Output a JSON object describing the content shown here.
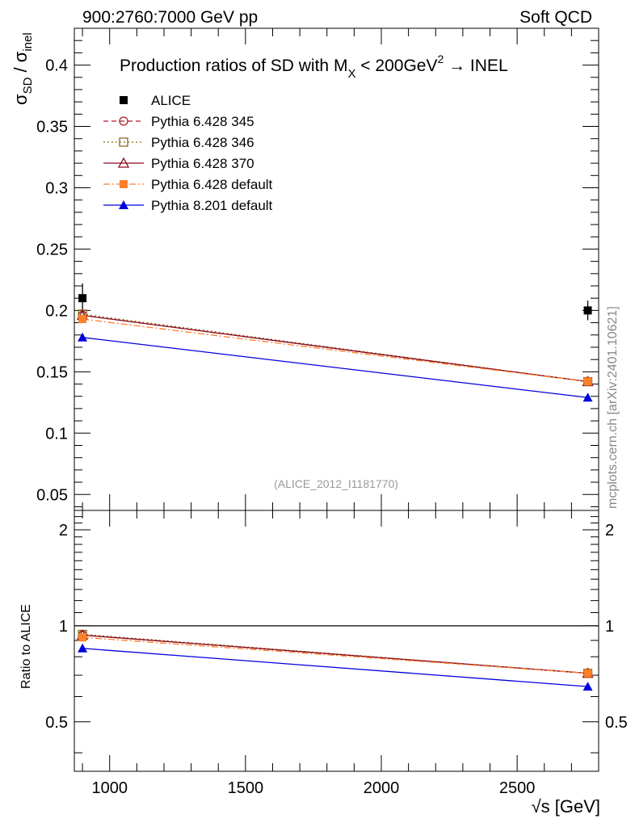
{
  "header": {
    "left": "900:2760:7000 GeV pp",
    "right": "Soft QCD"
  },
  "watermark": "mcplots.cern.ch [arXiv:2401.10621]",
  "analysis_id": "(ALICE_2012_I1181770)",
  "title": {
    "prefix": "Production ratios of SD with M",
    "sub": "X",
    "mid": " < 200GeV",
    "sup": "2",
    "suffix": " → INEL"
  },
  "ylabel": {
    "main": "σ",
    "sub1": "SD",
    "slash": " / σ",
    "sub2": "inel"
  },
  "ratio_ylabel": "Ratio to ALICE",
  "xlabel": "√s [GeV]",
  "colors": {
    "alice": "#000000",
    "p345": "#b2182b",
    "p346": "#8c6d1f",
    "p370": "#8b0a1a",
    "pdef6": "#ff7f2a",
    "p8": "#0000dd"
  },
  "chart_data": [
    {
      "type": "scatter",
      "panel": "main",
      "xlim": [
        870,
        2800
      ],
      "ylim": [
        0.037,
        0.43
      ],
      "x_ticks": [
        1000,
        1500,
        2000,
        2500
      ],
      "x_tick_labels": [
        "1000",
        "1500",
        "2000",
        "2500"
      ],
      "y_ticks": [
        0.05,
        0.1,
        0.15,
        0.2,
        0.25,
        0.3,
        0.35,
        0.4
      ],
      "y_tick_labels": [
        "0.05",
        "0.1",
        "0.15",
        "0.2",
        "0.25",
        "0.3",
        "0.35",
        "0.4"
      ],
      "series": [
        {
          "key": "alice",
          "name": "ALICE",
          "x": [
            900,
            2760
          ],
          "y": [
            0.21,
            0.2
          ],
          "yerr": [
            0.012,
            0.008
          ],
          "marker": "square-filled",
          "line": "none"
        },
        {
          "key": "p345",
          "name": "Pythia 6.428 345",
          "x": [
            900,
            2760
          ],
          "y": [
            0.196,
            0.142
          ],
          "marker": "circle-open",
          "line": "dashed"
        },
        {
          "key": "p346",
          "name": "Pythia 6.428 346",
          "x": [
            900,
            2760
          ],
          "y": [
            0.197,
            0.142
          ],
          "marker": "square-open",
          "line": "dotted"
        },
        {
          "key": "p370",
          "name": "Pythia 6.428 370",
          "x": [
            900,
            2760
          ],
          "y": [
            0.196,
            0.142
          ],
          "marker": "triangle-open",
          "line": "solid"
        },
        {
          "key": "pdef6",
          "name": "Pythia 6.428 default",
          "x": [
            900,
            2760
          ],
          "y": [
            0.193,
            0.142
          ],
          "marker": "square-filled",
          "line": "dashdot"
        },
        {
          "key": "p8",
          "name": "Pythia 8.201 default",
          "x": [
            900,
            2760
          ],
          "y": [
            0.178,
            0.129
          ],
          "marker": "triangle-filled",
          "line": "solid"
        }
      ]
    },
    {
      "type": "scatter",
      "panel": "ratio",
      "xlim": [
        870,
        2800
      ],
      "ylim": [
        0.35,
        2.3
      ],
      "y_scale": "log",
      "y_tick_labels": [
        "0.5",
        "1",
        "2"
      ],
      "y_ticks": [
        0.5,
        1,
        2
      ],
      "reference_line": 1,
      "series": [
        {
          "key": "p345",
          "x": [
            900,
            2760
          ],
          "y": [
            0.935,
            0.71
          ]
        },
        {
          "key": "p346",
          "x": [
            900,
            2760
          ],
          "y": [
            0.94,
            0.71
          ]
        },
        {
          "key": "p370",
          "x": [
            900,
            2760
          ],
          "y": [
            0.935,
            0.71
          ]
        },
        {
          "key": "pdef6",
          "x": [
            900,
            2760
          ],
          "y": [
            0.92,
            0.71
          ]
        },
        {
          "key": "p8",
          "x": [
            900,
            2760
          ],
          "y": [
            0.85,
            0.645
          ]
        }
      ]
    }
  ]
}
